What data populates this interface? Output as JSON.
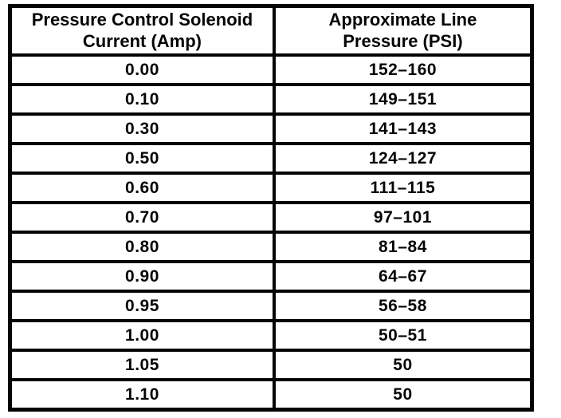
{
  "table": {
    "headers": [
      {
        "line1": "Pressure Control Solenoid",
        "line2": "Current (Amp)"
      },
      {
        "line1": "Approximate Line",
        "line2": "Pressure (PSI)"
      }
    ],
    "rows": [
      [
        "0.00",
        "152–160"
      ],
      [
        "0.10",
        "149–151"
      ],
      [
        "0.30",
        "141–143"
      ],
      [
        "0.50",
        "124–127"
      ],
      [
        "0.60",
        "111–115"
      ],
      [
        "0.70",
        "97–101"
      ],
      [
        "0.80",
        "81–84"
      ],
      [
        "0.90",
        "64–67"
      ],
      [
        "0.95",
        "56–58"
      ],
      [
        "1.00",
        "50–51"
      ],
      [
        "1.05",
        "50"
      ],
      [
        "1.10",
        "50"
      ]
    ]
  },
  "colors": {
    "ink": "#050505",
    "paper": "#ffffff"
  }
}
